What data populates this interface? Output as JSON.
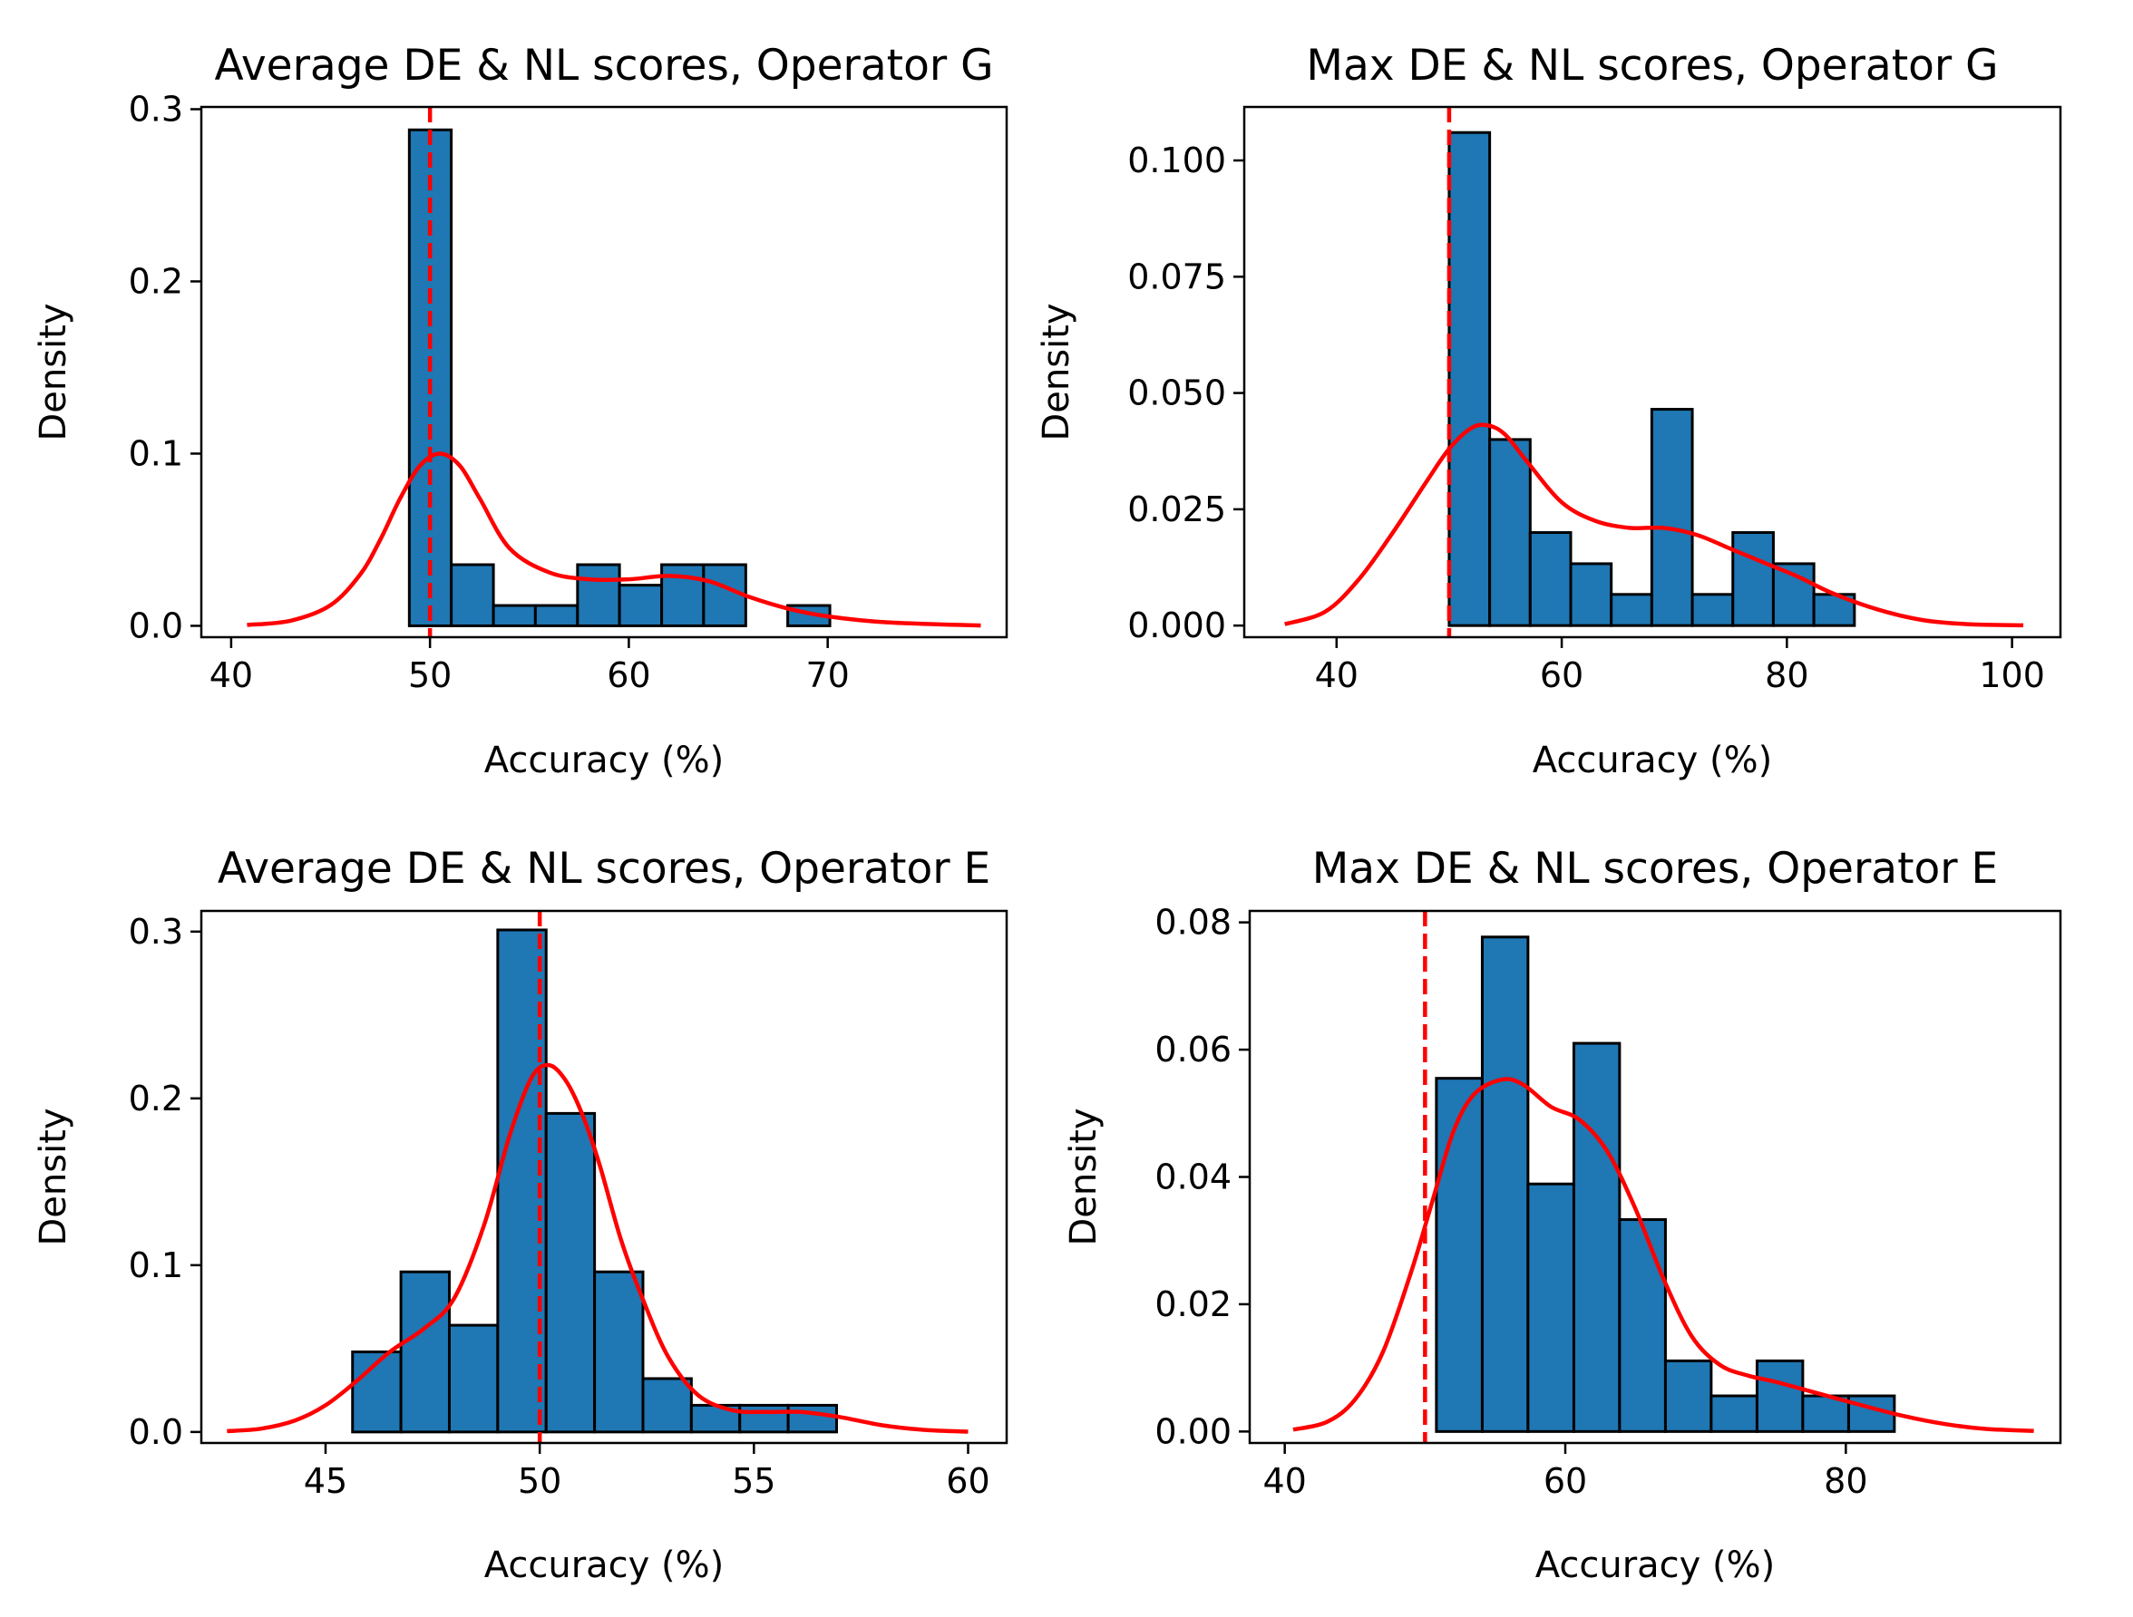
{
  "colors": {
    "bar_fill": "#1f77b4",
    "bar_edge": "#000000",
    "kde": "#ff0000",
    "threshold": "#ff0000"
  },
  "chart_data": [
    {
      "type": "bar",
      "title": "Average DE & NL scores, Operator G",
      "xlabel": "Accuracy (%)",
      "ylabel": "Density",
      "xlim": [
        38.5,
        79
      ],
      "ylim": [
        -0.0066,
        0.3013
      ],
      "xticks": [
        "40",
        "50",
        "60",
        "70"
      ],
      "yticks": [
        "0.0",
        "0.1",
        "0.2",
        "0.3"
      ],
      "threshold": 50,
      "bins": [
        {
          "x0": 48.96,
          "x1": 51.07,
          "density": 0.288
        },
        {
          "x0": 51.07,
          "x1": 53.19,
          "density": 0.0355
        },
        {
          "x0": 53.19,
          "x1": 55.3,
          "density": 0.0118
        },
        {
          "x0": 55.3,
          "x1": 57.42,
          "density": 0.0118
        },
        {
          "x0": 57.42,
          "x1": 59.53,
          "density": 0.0355
        },
        {
          "x0": 59.53,
          "x1": 61.65,
          "density": 0.0236
        },
        {
          "x0": 61.65,
          "x1": 63.76,
          "density": 0.0355
        },
        {
          "x0": 63.76,
          "x1": 65.88,
          "density": 0.0355
        },
        {
          "x0": 65.88,
          "x1": 67.99,
          "density": 0.0
        },
        {
          "x0": 67.99,
          "x1": 70.11,
          "density": 0.0118
        }
      ],
      "kde": {
        "x": [
          40.8,
          43,
          45,
          46.5,
          47.5,
          48.5,
          49.5,
          50.5,
          51.5,
          52.5,
          54,
          56,
          58,
          60,
          62,
          64,
          66,
          68,
          70,
          73,
          77.7
        ],
        "y": [
          0.0005,
          0.003,
          0.012,
          0.03,
          0.05,
          0.074,
          0.093,
          0.1,
          0.093,
          0.074,
          0.045,
          0.031,
          0.027,
          0.027,
          0.029,
          0.026,
          0.017,
          0.01,
          0.0055,
          0.002,
          0.0002
        ]
      }
    },
    {
      "type": "bar",
      "title": "Max DE & NL scores, Operator G",
      "xlabel": "Accuracy (%)",
      "ylabel": "Density",
      "xlim": [
        31.8,
        104.3
      ],
      "ylim": [
        -0.0025,
        0.1115
      ],
      "xticks": [
        "40",
        "60",
        "80",
        "100"
      ],
      "yticks": [
        "0.000",
        "0.025",
        "0.050",
        "0.075",
        "0.100"
      ],
      "threshold": 50,
      "bins": [
        {
          "x0": 50.0,
          "x1": 53.6,
          "density": 0.106
        },
        {
          "x0": 53.6,
          "x1": 57.2,
          "density": 0.04
        },
        {
          "x0": 57.2,
          "x1": 60.8,
          "density": 0.02
        },
        {
          "x0": 60.8,
          "x1": 64.4,
          "density": 0.0133
        },
        {
          "x0": 64.4,
          "x1": 68.0,
          "density": 0.0067
        },
        {
          "x0": 68.0,
          "x1": 71.6,
          "density": 0.0465
        },
        {
          "x0": 71.6,
          "x1": 75.2,
          "density": 0.0067
        },
        {
          "x0": 75.2,
          "x1": 78.8,
          "density": 0.02
        },
        {
          "x0": 78.8,
          "x1": 82.4,
          "density": 0.0133
        },
        {
          "x0": 82.4,
          "x1": 86.0,
          "density": 0.0067
        }
      ],
      "kde": {
        "x": [
          35.4,
          39,
          42,
          45,
          48,
          50,
          52,
          53.5,
          55,
          57,
          60,
          63,
          66,
          69,
          72,
          75,
          78,
          81,
          84,
          88,
          92,
          96,
          101
        ],
        "y": [
          0.0003,
          0.003,
          0.01,
          0.02,
          0.031,
          0.038,
          0.0425,
          0.043,
          0.041,
          0.035,
          0.0265,
          0.0225,
          0.021,
          0.021,
          0.0195,
          0.0165,
          0.0135,
          0.0105,
          0.007,
          0.0035,
          0.0012,
          0.0003,
          5e-05
        ]
      }
    },
    {
      "type": "bar",
      "title": "Average DE & NL scores, Operator E",
      "xlabel": "Accuracy (%)",
      "ylabel": "Density",
      "xlim": [
        42.1,
        60.9
      ],
      "ylim": [
        -0.0066,
        0.3124
      ],
      "xticks": [
        "45",
        "50",
        "55",
        "60"
      ],
      "yticks": [
        "0.0",
        "0.1",
        "0.2",
        "0.3"
      ],
      "threshold": 50,
      "bins": [
        {
          "x0": 45.63,
          "x1": 46.76,
          "density": 0.048
        },
        {
          "x0": 46.76,
          "x1": 47.89,
          "density": 0.096
        },
        {
          "x0": 47.89,
          "x1": 49.02,
          "density": 0.064
        },
        {
          "x0": 49.02,
          "x1": 50.15,
          "density": 0.301
        },
        {
          "x0": 50.15,
          "x1": 51.28,
          "density": 0.191
        },
        {
          "x0": 51.28,
          "x1": 52.41,
          "density": 0.096
        },
        {
          "x0": 52.41,
          "x1": 53.54,
          "density": 0.032
        },
        {
          "x0": 53.54,
          "x1": 54.67,
          "density": 0.016
        },
        {
          "x0": 54.67,
          "x1": 55.8,
          "density": 0.016
        },
        {
          "x0": 55.8,
          "x1": 56.93,
          "density": 0.016
        }
      ],
      "kde": {
        "x": [
          42.7,
          43.5,
          44.3,
          45,
          45.7,
          46.5,
          47.3,
          48,
          48.7,
          49.3,
          49.8,
          50.2,
          50.6,
          51,
          51.4,
          51.9,
          52.4,
          53,
          53.7,
          54.5,
          55.3,
          56.1,
          57,
          58,
          59,
          60
        ],
        "y": [
          0.0005,
          0.002,
          0.007,
          0.016,
          0.03,
          0.048,
          0.062,
          0.08,
          0.124,
          0.178,
          0.212,
          0.22,
          0.211,
          0.19,
          0.16,
          0.115,
          0.08,
          0.045,
          0.022,
          0.013,
          0.012,
          0.012,
          0.009,
          0.004,
          0.0012,
          0.0002
        ]
      }
    },
    {
      "type": "bar",
      "title": "Max DE & NL scores, Operator E",
      "xlabel": "Accuracy (%)",
      "ylabel": "Density",
      "xlim": [
        37.5,
        95.3
      ],
      "ylim": [
        -0.0018,
        0.0818
      ],
      "xticks": [
        "40",
        "60",
        "80"
      ],
      "yticks": [
        "0.00",
        "0.02",
        "0.04",
        "0.06",
        "0.08"
      ],
      "threshold": 50,
      "bins": [
        {
          "x0": 50.81,
          "x1": 54.08,
          "density": 0.0555
        },
        {
          "x0": 54.08,
          "x1": 57.34,
          "density": 0.0777
        },
        {
          "x0": 57.34,
          "x1": 60.61,
          "density": 0.0389
        },
        {
          "x0": 60.61,
          "x1": 63.87,
          "density": 0.061
        },
        {
          "x0": 63.87,
          "x1": 67.14,
          "density": 0.0333
        },
        {
          "x0": 67.14,
          "x1": 70.4,
          "density": 0.0111
        },
        {
          "x0": 70.4,
          "x1": 73.67,
          "density": 0.0056
        },
        {
          "x0": 73.67,
          "x1": 76.93,
          "density": 0.0111
        },
        {
          "x0": 76.93,
          "x1": 80.2,
          "density": 0.0056
        },
        {
          "x0": 80.2,
          "x1": 83.46,
          "density": 0.0056
        }
      ],
      "kde": {
        "x": [
          40.6,
          43,
          45,
          47,
          49,
          50.5,
          52,
          53.5,
          55.5,
          57,
          59,
          61,
          63,
          65,
          67,
          69,
          71,
          73,
          75,
          78,
          81,
          84,
          87,
          90,
          93.4
        ],
        "y": [
          0.0003,
          0.0015,
          0.005,
          0.0125,
          0.025,
          0.036,
          0.047,
          0.053,
          0.0553,
          0.0545,
          0.051,
          0.049,
          0.044,
          0.035,
          0.024,
          0.015,
          0.0105,
          0.0088,
          0.0078,
          0.006,
          0.0042,
          0.0025,
          0.0012,
          0.0004,
          0.0001
        ]
      }
    }
  ]
}
